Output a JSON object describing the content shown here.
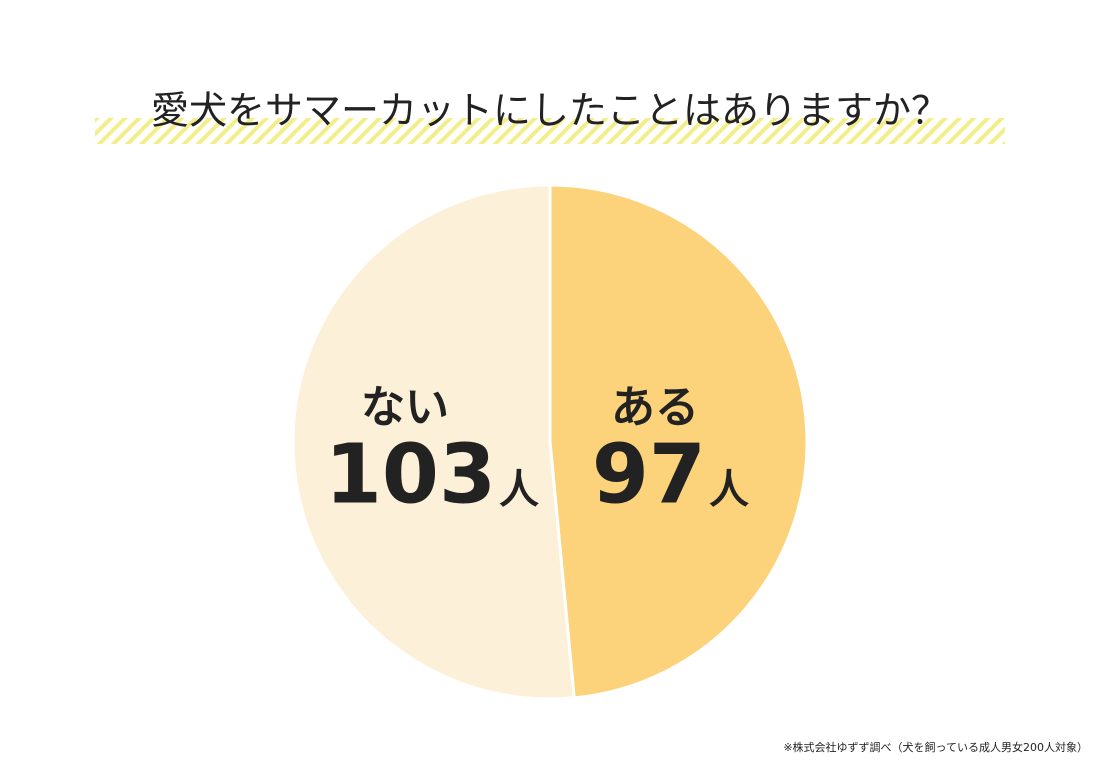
{
  "chart_data": {
    "type": "pie",
    "title": "愛犬をサマーカットにしたことはありますか？",
    "categories": [
      "ある",
      "ない"
    ],
    "values": [
      97,
      103
    ],
    "unit": "人",
    "colors": [
      "#fcd37a",
      "#fdf0d8"
    ],
    "source": "※株式会社ゆずず調べ（犬を飼っている成人男女200人対象）"
  }
}
